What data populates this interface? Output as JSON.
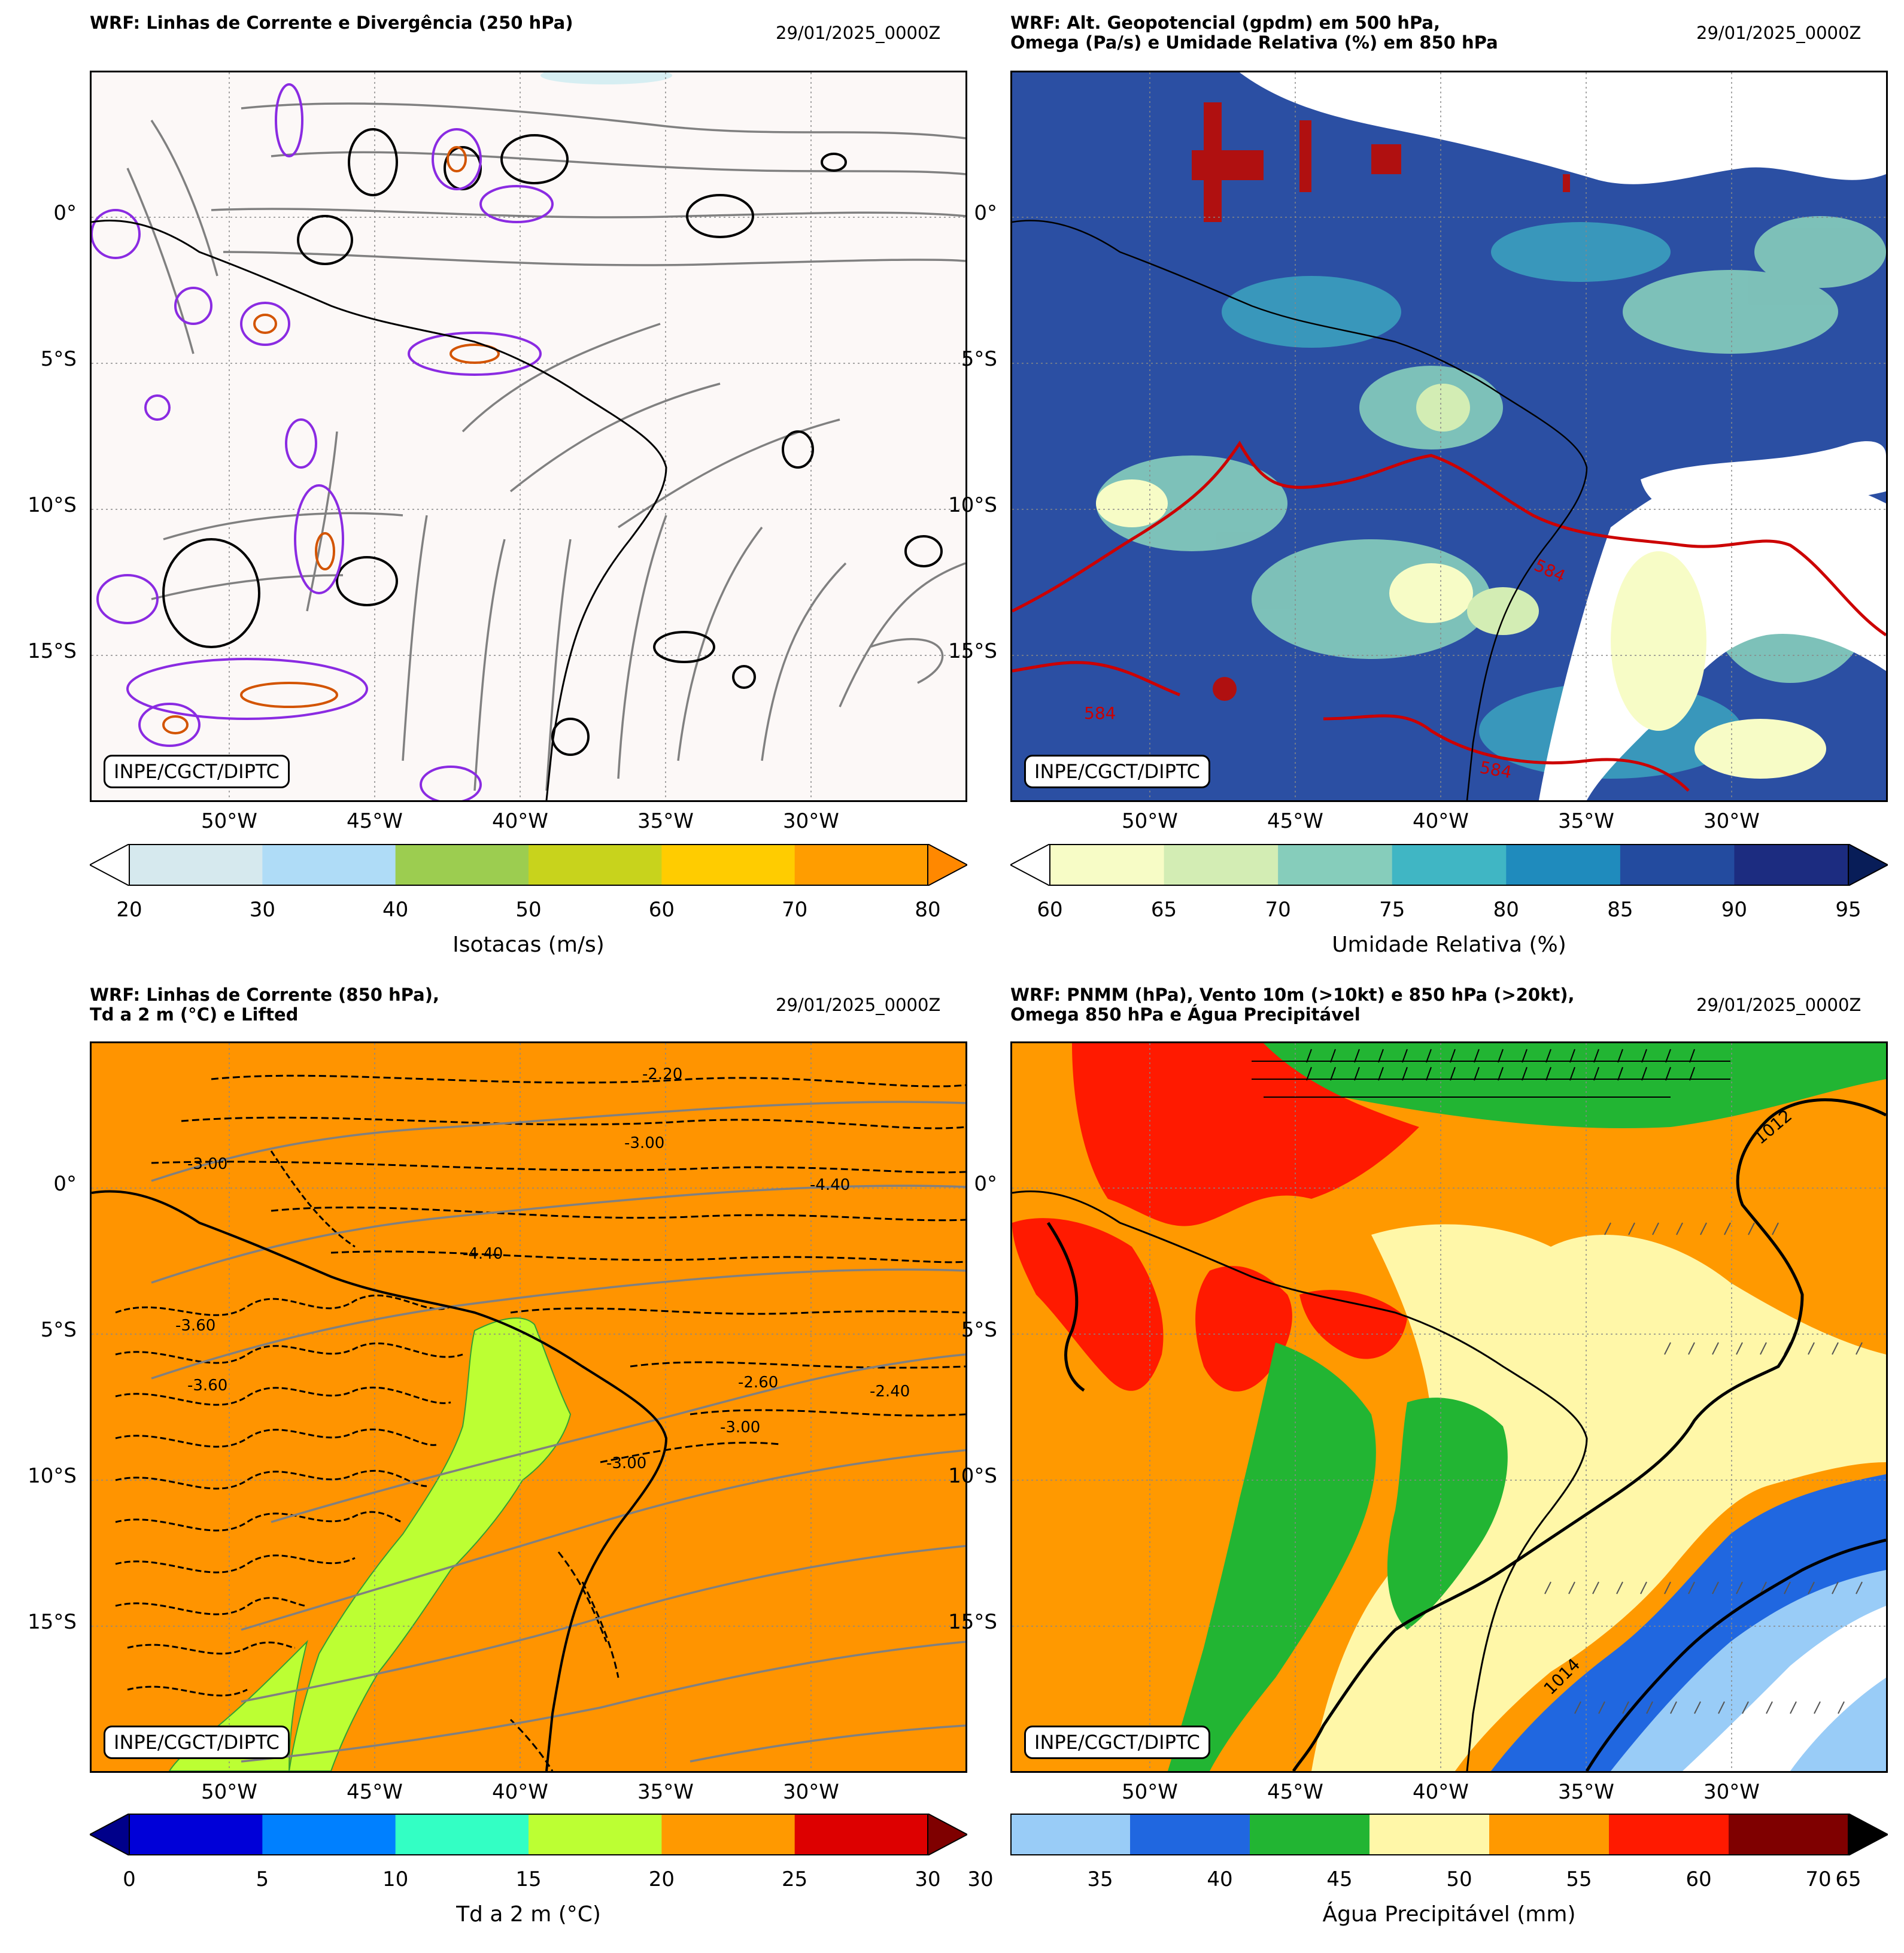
{
  "panels": [
    {
      "title": "WRF: Linhas de Corrente e Divergência (250 hPa)",
      "date": "29/01/2025_0000Z",
      "credit": "INPE/CGCT/DIPTC",
      "lat_labels": [
        "0°",
        "5°S",
        "10°S",
        "15°S"
      ],
      "lon_labels": [
        "50°W",
        "45°W",
        "40°W",
        "35°W",
        "30°W"
      ],
      "colorbar": {
        "label": "Isotacas (m/s)",
        "ticks": [
          "20",
          "30",
          "40",
          "50",
          "60",
          "70",
          "80"
        ],
        "colors": [
          "#d6e9ee",
          "#afdcf7",
          "#9ccd50",
          "#c8d31c",
          "#ffcc00",
          "#ff9d00"
        ],
        "under_color": "#ffffff",
        "over_color": "#ff8800"
      },
      "map_bg": "#fcf8f7"
    },
    {
      "title": "WRF: Alt. Geopotencial (gpdm) em 500 hPa,\nOmega (Pa/s) e Umidade Relativa (%) em 850 hPa",
      "date": "29/01/2025_0000Z",
      "credit": "INPE/CGCT/DIPTC",
      "lat_labels": [
        "0°",
        "5°S",
        "10°S",
        "15°S"
      ],
      "lon_labels": [
        "50°W",
        "45°W",
        "40°W",
        "35°W",
        "30°W"
      ],
      "contour_labels": [
        "584",
        "584",
        "584"
      ],
      "colorbar": {
        "label": "Umidade Relativa (%)",
        "ticks": [
          "60",
          "65",
          "70",
          "75",
          "80",
          "85",
          "90",
          "95"
        ],
        "colors": [
          "#f7fcc6",
          "#d3edb4",
          "#86cdbb",
          "#40b6c4",
          "#1f8bbd",
          "#234b9f",
          "#1c2c80"
        ],
        "under_color": "#ffffff",
        "over_color": "#081d58"
      },
      "map_bg": "#2b4fa3"
    },
    {
      "title": "WRF: Linhas de Corrente (850 hPa),\nTd a 2 m (°C) e Lifted",
      "date": "29/01/2025_0000Z",
      "credit": "INPE/CGCT/DIPTC",
      "lat_labels": [
        "0°",
        "5°S",
        "10°S",
        "15°S"
      ],
      "lon_labels": [
        "50°W",
        "45°W",
        "40°W",
        "35°W",
        "30°W"
      ],
      "contour_labels": [
        "-3.00",
        "-2.20",
        "-3.00",
        "-4.40",
        "-3.60",
        "-2.60",
        "-4.40",
        "-3.60",
        "-3.00",
        "-2.40",
        "-3.00"
      ],
      "colorbar": {
        "label": "Td a 2 m (°C)",
        "ticks": [
          "0",
          "5",
          "10",
          "15",
          "20",
          "25",
          "30"
        ],
        "colors": [
          "#0000d8",
          "#0080ff",
          "#33ffc4",
          "#bcff33",
          "#ff9900",
          "#dd0000"
        ],
        "under_color": "#00008a",
        "over_color": "#7f0000"
      },
      "map_bg": "#ff9400"
    },
    {
      "title": "WRF: PNMM (hPa), Vento 10m (>10kt) e 850 hPa (>20kt),\nOmega 850 hPa e Água Precipitável",
      "date": "29/01/2025_0000Z",
      "credit": "INPE/CGCT/DIPTC",
      "lat_labels": [
        "0°",
        "5°S",
        "10°S",
        "15°S"
      ],
      "lon_labels": [
        "50°W",
        "45°W",
        "40°W",
        "35°W",
        "30°W"
      ],
      "contour_labels": [
        "1012",
        "1014"
      ],
      "colorbar": {
        "label": "Água Precipitável (mm)",
        "ticks": [
          "30",
          "35",
          "40",
          "45",
          "50",
          "55",
          "60",
          "70"
        ],
        "extra_tick": "65",
        "colors": [
          "#99ccf7",
          "#2067e0",
          "#22b533",
          "#fff7a8",
          "#ff9900",
          "#ff1a00",
          "#7f0000"
        ],
        "over_color": "#000000"
      },
      "map_bg": "#ff9900"
    }
  ]
}
